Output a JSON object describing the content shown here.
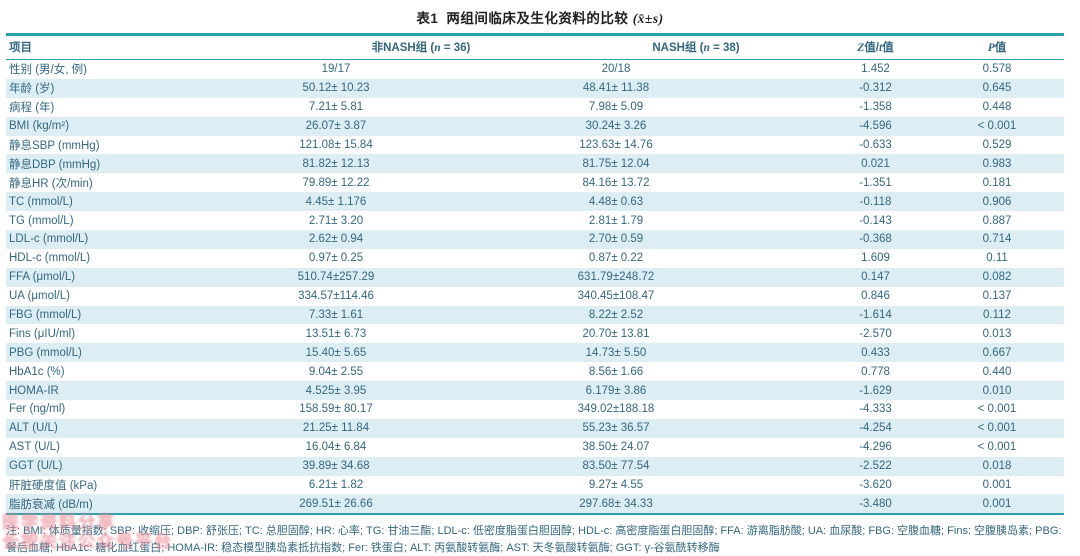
{
  "title": {
    "prefix": "表1",
    "main": "两组间临床及生化资料的比较",
    "stat": "(x̄±s)"
  },
  "table": {
    "headers": [
      {
        "segs": [
          {
            "t": "项目"
          }
        ]
      },
      {
        "segs": [
          {
            "t": "非NASH组 ("
          },
          {
            "t": "n",
            "i": true
          },
          {
            "t": " = 36)"
          }
        ]
      },
      {
        "segs": [
          {
            "t": "NASH组 ("
          },
          {
            "t": "n",
            "i": true
          },
          {
            "t": " = 38)"
          }
        ]
      },
      {
        "segs": [
          {
            "t": "Z",
            "i": true
          },
          {
            "t": "值/"
          },
          {
            "t": "t",
            "i": true
          },
          {
            "t": "值"
          }
        ]
      },
      {
        "segs": [
          {
            "t": "P",
            "i": true
          },
          {
            "t": "值"
          }
        ]
      }
    ],
    "rows": [
      {
        "label": "性别 (男/女, 例)",
        "non_nash": "19/17",
        "nash": "20/18",
        "z": "1.452",
        "p": "0.578"
      },
      {
        "label": "年龄 (岁)",
        "non_nash": "50.12± 10.23",
        "nash": "48.41± 11.38",
        "z": "-0.312",
        "p": "0.645"
      },
      {
        "label": "病程 (年)",
        "non_nash": "7.21± 5.81",
        "nash": "7.98± 5.09",
        "z": "-1.358",
        "p": "0.448"
      },
      {
        "label": "BMI (kg/m²)",
        "non_nash": "26.07± 3.87",
        "nash": "30.24± 3.26",
        "z": "-4.596",
        "p": "< 0.001"
      },
      {
        "label": "静息SBP (mmHg)",
        "non_nash": "121.08± 15.84",
        "nash": "123.63± 14.76",
        "z": "-0.633",
        "p": "0.529"
      },
      {
        "label": "静息DBP (mmHg)",
        "non_nash": "81.82± 12.13",
        "nash": "81.75± 12.04",
        "z": "0.021",
        "p": "0.983"
      },
      {
        "label": "静息HR (次/min)",
        "non_nash": "79.89± 12.22",
        "nash": "84.16± 13.72",
        "z": "-1.351",
        "p": "0.181"
      },
      {
        "label": "TC (mmol/L)",
        "non_nash": "4.45± 1.176",
        "nash": "4.48± 0.63",
        "z": "-0.118",
        "p": "0.906"
      },
      {
        "label": "TG (mmol/L)",
        "non_nash": "2.71± 3.20",
        "nash": "2.81± 1.79",
        "z": "-0.143",
        "p": "0.887"
      },
      {
        "label": "LDL-c (mmol/L)",
        "non_nash": "2.62± 0.94",
        "nash": "2.70± 0.59",
        "z": "-0.368",
        "p": "0.714"
      },
      {
        "label": "HDL-c (mmol/L)",
        "non_nash": "0.97± 0.25",
        "nash": "0.87± 0.22",
        "z": "1.609",
        "p": "0.11"
      },
      {
        "label": "FFA (μmol/L)",
        "non_nash": "510.74±257.29",
        "nash": "631.79±248.72",
        "z": "0.147",
        "p": "0.082"
      },
      {
        "label": "UA (μmol/L)",
        "non_nash": "334.57±114.46",
        "nash": "340.45±108.47",
        "z": "0.846",
        "p": "0.137"
      },
      {
        "label": "FBG (mmol/L)",
        "non_nash": "7.33± 1.61",
        "nash": "8.22± 2.52",
        "z": "-1.614",
        "p": "0.112"
      },
      {
        "label": "Fins (μIU/ml)",
        "non_nash": "13.51± 6.73",
        "nash": "20.70± 13.81",
        "z": "-2.570",
        "p": "0.013"
      },
      {
        "label": "PBG (mmol/L)",
        "non_nash": "15.40± 5.65",
        "nash": "14.73± 5.50",
        "z": "0.433",
        "p": "0.667"
      },
      {
        "label": "HbA1c (%)",
        "non_nash": "9.04± 2.55",
        "nash": "8.56± 1.66",
        "z": "0.778",
        "p": "0.440"
      },
      {
        "label": "HOMA-IR",
        "non_nash": "4.525± 3.95",
        "nash": "6.179± 3.86",
        "z": "-1.629",
        "p": "0.010"
      },
      {
        "label": "Fer (ng/ml)",
        "non_nash": "158.59± 80.17",
        "nash": "349.02±188.18",
        "z": "-4.333",
        "p": "< 0.001"
      },
      {
        "label": "ALT (U/L)",
        "non_nash": "21.25± 11.84",
        "nash": "55.23± 36.57",
        "z": "-4.254",
        "p": "< 0.001"
      },
      {
        "label": "AST (U/L)",
        "non_nash": "16.04± 6.84",
        "nash": "38.50± 24.07",
        "z": "-4.296",
        "p": "< 0.001"
      },
      {
        "label": "GGT (U/L)",
        "non_nash": "39.89± 34.68",
        "nash": "83.50± 77.54",
        "z": "-2.522",
        "p": "0.018"
      },
      {
        "label": "肝脏硬度值 (kPa)",
        "non_nash": "6.21± 1.82",
        "nash": "9.27± 4.55",
        "z": "-3.620",
        "p": "0.001"
      },
      {
        "label": "脂肪衰减 (dB/m)",
        "non_nash": "269.51± 26.66",
        "nash": "297.68± 34.33",
        "z": "-3.480",
        "p": "0.001"
      }
    ]
  },
  "footnote": "注: BMI: 体质量指数; SBP: 收缩压; DBP: 舒张压; TC: 总胆固醇; HR: 心率; TG: 甘油三酯; LDL-c: 低密度脂蛋白胆固醇; HDL-c: 高密度脂蛋白胆固醇; FFA: 游离脂肪酸; UA: 血尿酸; FBG: 空腹血糖; Fins: 空腹胰岛素; PBG: 餐后血糖; HbA1c: 糖化血红蛋白; HOMA-IR: 稳态模型胰岛素抵抗指数; Fer: 铁蛋白; ALT: 丙氨酸转氨酶; AST: 天冬氨酸转氨酶; GGT: γ-谷氨酰转移酶",
  "watermark": {
    "line1": "医学资料分享",
    "line2": "长按关注公众号平台"
  },
  "colors": {
    "accent_teal": "#2f9fae",
    "row_stripe": "#dcedf4",
    "table_text": "#34677f",
    "watermark_pink": "#e88c96"
  }
}
